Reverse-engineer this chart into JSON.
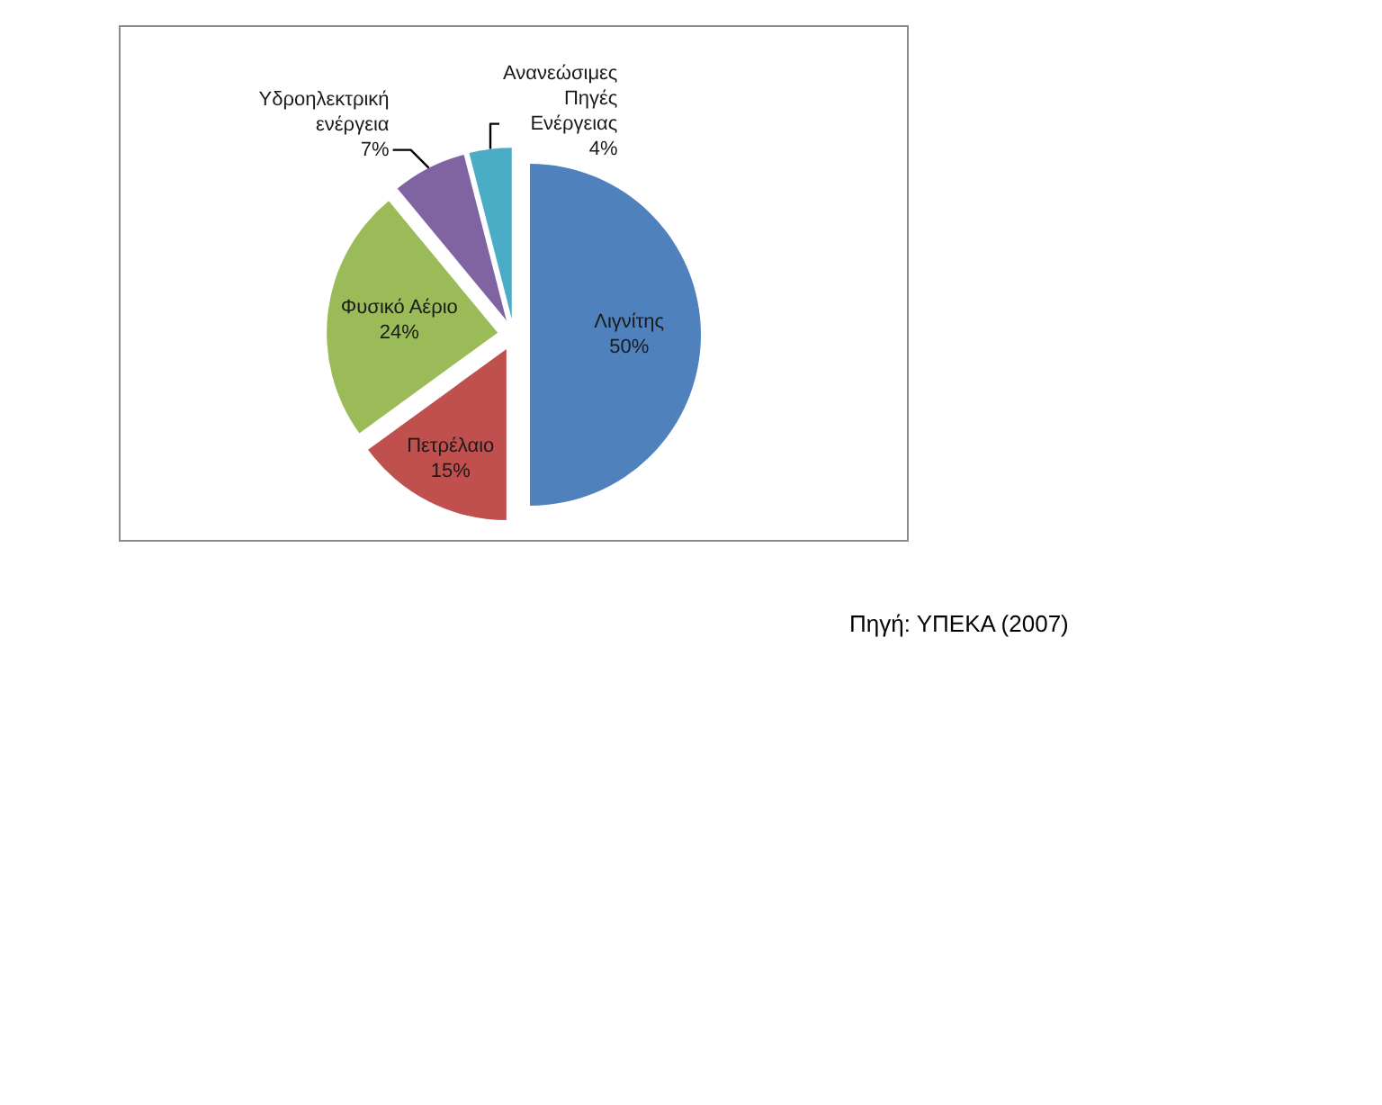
{
  "chart_data": {
    "type": "pie",
    "categories": [
      "Λιγνίτης",
      "Πετρέλαιο",
      "Φυσικό Αέριο",
      "Υδροηλεκτρική ενέργεια",
      "Ανανεώσιμες Πηγές Ενέργειας"
    ],
    "values": [
      50,
      15,
      24,
      7,
      4
    ],
    "colors": [
      "#4f81bd",
      "#c0504d",
      "#9bbb59",
      "#8064a2",
      "#4bacc6"
    ],
    "value_labels": [
      "50%",
      "15%",
      "24%",
      "7%",
      "4%"
    ],
    "annotations": [
      "Πηγή: ΥΠΕΚΑ (2007)"
    ]
  }
}
